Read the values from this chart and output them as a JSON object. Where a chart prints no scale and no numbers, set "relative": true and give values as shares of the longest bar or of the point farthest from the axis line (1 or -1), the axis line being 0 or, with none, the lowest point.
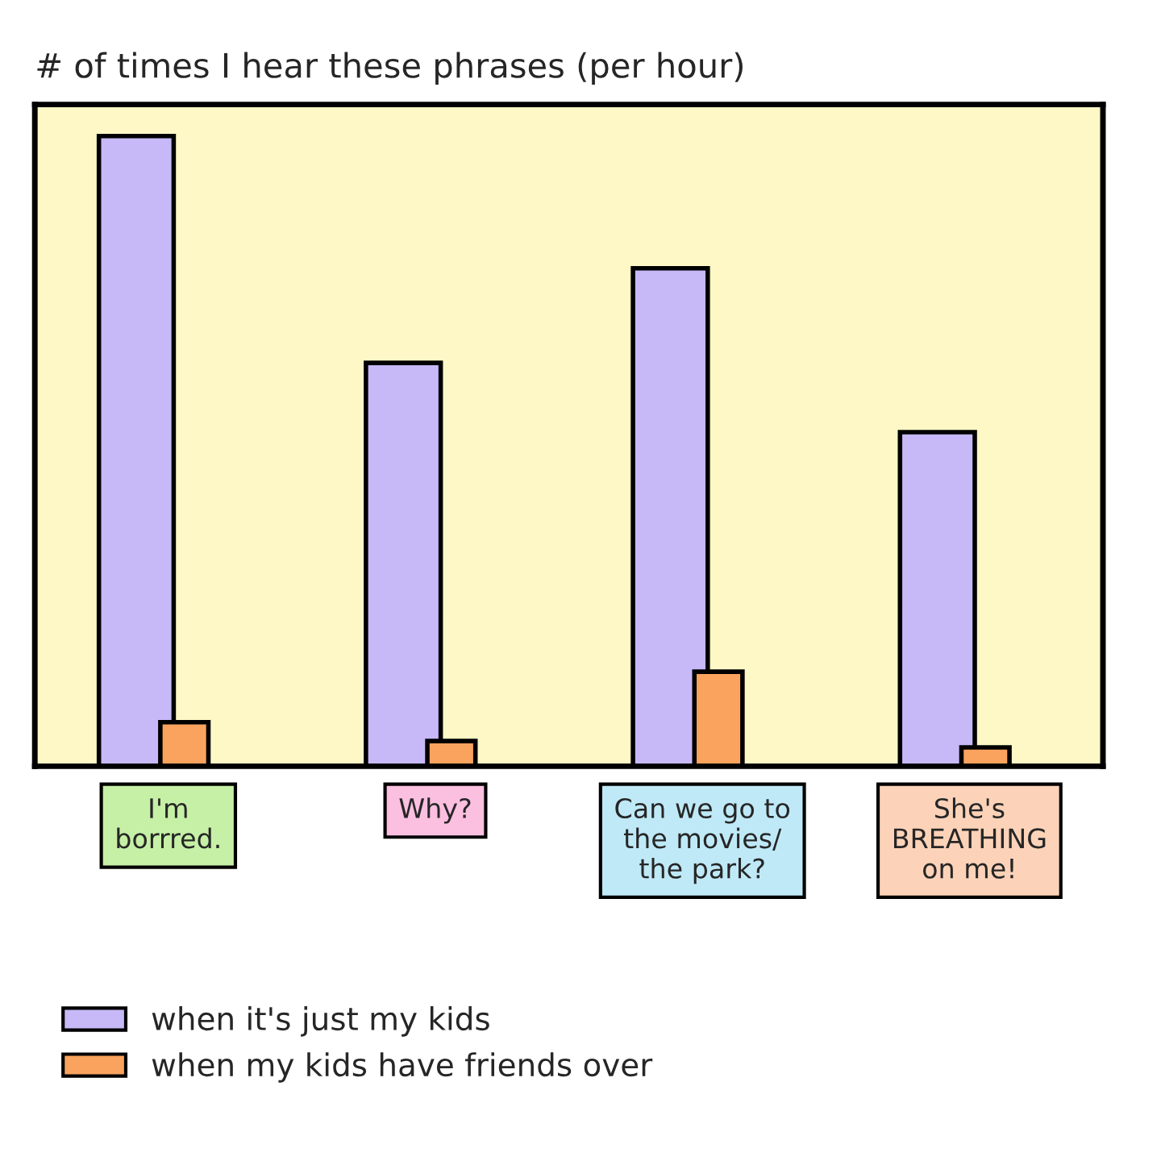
{
  "chart_data": {
    "type": "bar",
    "title": "# of times I hear these phrases (per hour)",
    "categories": [
      "I'm\nborrred.",
      "Why?",
      "Can we go to\nthe movies/\nthe park?",
      "She's\nBREATHING\non me!"
    ],
    "relative": true,
    "series": [
      {
        "name": "when it's just my kids",
        "color": "#c7b9f7",
        "values": [
          1,
          0.64,
          0.79,
          0.53
        ]
      },
      {
        "name": "when my kids have friends over",
        "color": "#f9a35e",
        "values": [
          0.07,
          0.04,
          0.15,
          0.03
        ]
      }
    ],
    "legend": "bottom",
    "grid": false
  }
}
